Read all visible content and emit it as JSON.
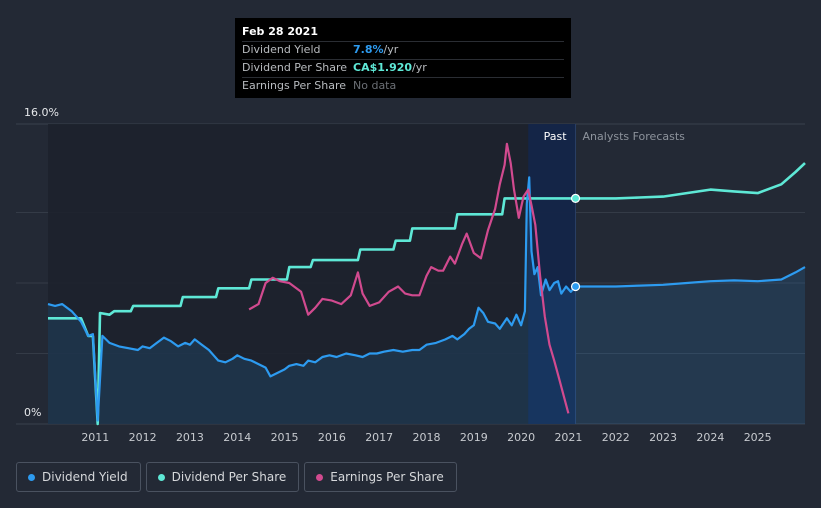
{
  "tooltip": {
    "date": "Feb 28 2021",
    "rows": [
      {
        "label": "Dividend Yield",
        "value": "7.8%",
        "unit": " /yr",
        "color": "#2d9bf0"
      },
      {
        "label": "Dividend Per Share",
        "value": "CA$1.920",
        "unit": " /yr",
        "color": "#5ee8d6"
      },
      {
        "label": "Earnings Per Share",
        "value": "No data",
        "unit": "",
        "color": "#6b6f75"
      }
    ]
  },
  "legend": [
    {
      "label": "Dividend Yield",
      "color": "#2d9bf0"
    },
    {
      "label": "Dividend Per Share",
      "color": "#5ee8d6"
    },
    {
      "label": "Earnings Per Share",
      "color": "#d14a8f"
    }
  ],
  "chart_data": {
    "type": "line",
    "title": "",
    "y_top_label": "16.0%",
    "y_bottom_label": "0%",
    "ylim": [
      0,
      16
    ],
    "xlim": [
      2010.0,
      2026.0
    ],
    "x_ticks": [
      "2011",
      "2012",
      "2013",
      "2014",
      "2015",
      "2016",
      "2017",
      "2018",
      "2019",
      "2020",
      "2021",
      "2022",
      "2023",
      "2024",
      "2025"
    ],
    "past_label": "Past",
    "forecast_label": "Analysts Forecasts",
    "forecast_start": 2021.15,
    "highlight_range": [
      2020.15,
      2021.15
    ],
    "series": [
      {
        "name": "Dividend Yield",
        "color": "#2d9bf0",
        "unit": "%",
        "points": [
          [
            2010.0,
            6.8
          ],
          [
            2010.15,
            6.7
          ],
          [
            2010.3,
            6.8
          ],
          [
            2010.5,
            6.4
          ],
          [
            2010.7,
            5.8
          ],
          [
            2010.85,
            5.0
          ],
          [
            2010.95,
            5.1
          ],
          [
            2011.05,
            0.2
          ],
          [
            2011.15,
            5.0
          ],
          [
            2011.3,
            4.6
          ],
          [
            2011.5,
            4.4
          ],
          [
            2011.7,
            4.3
          ],
          [
            2011.9,
            4.2
          ],
          [
            2012.0,
            4.4
          ],
          [
            2012.15,
            4.3
          ],
          [
            2012.3,
            4.6
          ],
          [
            2012.45,
            4.9
          ],
          [
            2012.6,
            4.7
          ],
          [
            2012.75,
            4.4
          ],
          [
            2012.9,
            4.6
          ],
          [
            2013.0,
            4.5
          ],
          [
            2013.1,
            4.8
          ],
          [
            2013.25,
            4.5
          ],
          [
            2013.4,
            4.2
          ],
          [
            2013.5,
            3.9
          ],
          [
            2013.6,
            3.6
          ],
          [
            2013.75,
            3.5
          ],
          [
            2013.9,
            3.7
          ],
          [
            2014.0,
            3.9
          ],
          [
            2014.15,
            3.7
          ],
          [
            2014.3,
            3.6
          ],
          [
            2014.45,
            3.4
          ],
          [
            2014.6,
            3.2
          ],
          [
            2014.7,
            2.7
          ],
          [
            2014.85,
            2.9
          ],
          [
            2015.0,
            3.1
          ],
          [
            2015.1,
            3.3
          ],
          [
            2015.25,
            3.4
          ],
          [
            2015.4,
            3.3
          ],
          [
            2015.5,
            3.6
          ],
          [
            2015.65,
            3.5
          ],
          [
            2015.8,
            3.8
          ],
          [
            2015.95,
            3.9
          ],
          [
            2016.1,
            3.8
          ],
          [
            2016.3,
            4.0
          ],
          [
            2016.5,
            3.9
          ],
          [
            2016.65,
            3.8
          ],
          [
            2016.8,
            4.0
          ],
          [
            2016.95,
            4.0
          ],
          [
            2017.1,
            4.1
          ],
          [
            2017.3,
            4.2
          ],
          [
            2017.5,
            4.1
          ],
          [
            2017.7,
            4.2
          ],
          [
            2017.85,
            4.2
          ],
          [
            2018.0,
            4.5
          ],
          [
            2018.2,
            4.6
          ],
          [
            2018.4,
            4.8
          ],
          [
            2018.55,
            5.0
          ],
          [
            2018.65,
            4.8
          ],
          [
            2018.8,
            5.1
          ],
          [
            2018.9,
            5.4
          ],
          [
            2019.0,
            5.6
          ],
          [
            2019.1,
            6.6
          ],
          [
            2019.2,
            6.3
          ],
          [
            2019.3,
            5.8
          ],
          [
            2019.45,
            5.7
          ],
          [
            2019.55,
            5.4
          ],
          [
            2019.7,
            6.0
          ],
          [
            2019.8,
            5.6
          ],
          [
            2019.9,
            6.2
          ],
          [
            2020.0,
            5.6
          ],
          [
            2020.08,
            6.4
          ],
          [
            2020.12,
            12.5
          ],
          [
            2020.17,
            14.0
          ],
          [
            2020.22,
            9.8
          ],
          [
            2020.28,
            8.5
          ],
          [
            2020.35,
            8.9
          ],
          [
            2020.42,
            7.3
          ],
          [
            2020.52,
            8.2
          ],
          [
            2020.6,
            7.6
          ],
          [
            2020.7,
            8.0
          ],
          [
            2020.78,
            8.1
          ],
          [
            2020.85,
            7.4
          ],
          [
            2020.95,
            7.8
          ],
          [
            2021.05,
            7.5
          ],
          [
            2021.15,
            7.8
          ],
          [
            2021.5,
            7.8
          ],
          [
            2022.0,
            7.8
          ],
          [
            2022.5,
            7.85
          ],
          [
            2023.0,
            7.9
          ],
          [
            2023.5,
            8.0
          ],
          [
            2024.0,
            8.1
          ],
          [
            2024.5,
            8.15
          ],
          [
            2025.0,
            8.1
          ],
          [
            2025.5,
            8.2
          ],
          [
            2025.8,
            8.6
          ],
          [
            2026.0,
            8.9
          ]
        ]
      },
      {
        "name": "Dividend Per Share",
        "color": "#5ee8d6",
        "unit": "CA$",
        "points": [
          [
            2010.0,
            6.0
          ],
          [
            2010.7,
            6.0
          ],
          [
            2010.85,
            5.0
          ],
          [
            2010.95,
            5.0
          ],
          [
            2011.05,
            0.0
          ],
          [
            2011.1,
            6.3
          ],
          [
            2011.3,
            6.2
          ],
          [
            2011.4,
            6.4
          ],
          [
            2011.75,
            6.4
          ],
          [
            2011.8,
            6.7
          ],
          [
            2012.8,
            6.7
          ],
          [
            2012.85,
            7.2
          ],
          [
            2013.55,
            7.2
          ],
          [
            2013.6,
            7.7
          ],
          [
            2014.25,
            7.7
          ],
          [
            2014.3,
            8.2
          ],
          [
            2015.05,
            8.2
          ],
          [
            2015.1,
            8.9
          ],
          [
            2015.55,
            8.9
          ],
          [
            2015.6,
            9.3
          ],
          [
            2016.55,
            9.3
          ],
          [
            2016.6,
            9.9
          ],
          [
            2017.3,
            9.9
          ],
          [
            2017.35,
            10.4
          ],
          [
            2017.65,
            10.4
          ],
          [
            2017.7,
            11.1
          ],
          [
            2018.6,
            11.1
          ],
          [
            2018.65,
            11.9
          ],
          [
            2019.6,
            11.9
          ],
          [
            2019.65,
            12.8
          ],
          [
            2020.2,
            12.8
          ],
          [
            2021.15,
            12.8
          ],
          [
            2022.0,
            12.8
          ],
          [
            2022.5,
            12.85
          ],
          [
            2023.0,
            12.9
          ],
          [
            2023.5,
            13.1
          ],
          [
            2024.0,
            13.3
          ],
          [
            2024.5,
            13.2
          ],
          [
            2025.0,
            13.1
          ],
          [
            2025.5,
            13.6
          ],
          [
            2025.8,
            14.3
          ],
          [
            2026.0,
            14.8
          ]
        ]
      },
      {
        "name": "Earnings Per Share",
        "color": "#d14a8f",
        "unit": "CA$",
        "points": [
          [
            2014.25,
            6.5
          ],
          [
            2014.45,
            6.8
          ],
          [
            2014.6,
            8.0
          ],
          [
            2014.75,
            8.3
          ],
          [
            2014.9,
            8.1
          ],
          [
            2015.1,
            8.0
          ],
          [
            2015.35,
            7.5
          ],
          [
            2015.5,
            6.2
          ],
          [
            2015.65,
            6.6
          ],
          [
            2015.8,
            7.1
          ],
          [
            2016.0,
            7.0
          ],
          [
            2016.2,
            6.8
          ],
          [
            2016.4,
            7.3
          ],
          [
            2016.55,
            8.6
          ],
          [
            2016.65,
            7.4
          ],
          [
            2016.8,
            6.7
          ],
          [
            2017.0,
            6.9
          ],
          [
            2017.2,
            7.5
          ],
          [
            2017.4,
            7.8
          ],
          [
            2017.55,
            7.4
          ],
          [
            2017.7,
            7.3
          ],
          [
            2017.85,
            7.3
          ],
          [
            2018.0,
            8.4
          ],
          [
            2018.1,
            8.9
          ],
          [
            2018.25,
            8.7
          ],
          [
            2018.35,
            8.7
          ],
          [
            2018.5,
            9.5
          ],
          [
            2018.6,
            9.1
          ],
          [
            2018.75,
            10.2
          ],
          [
            2018.85,
            10.8
          ],
          [
            2019.0,
            9.7
          ],
          [
            2019.15,
            9.4
          ],
          [
            2019.3,
            11.0
          ],
          [
            2019.45,
            12.2
          ],
          [
            2019.55,
            13.6
          ],
          [
            2019.65,
            14.7
          ],
          [
            2019.7,
            15.9
          ],
          [
            2019.78,
            14.8
          ],
          [
            2019.85,
            13.3
          ],
          [
            2019.95,
            11.7
          ],
          [
            2020.05,
            12.9
          ],
          [
            2020.15,
            13.3
          ],
          [
            2020.22,
            12.4
          ],
          [
            2020.3,
            11.3
          ],
          [
            2020.4,
            8.4
          ],
          [
            2020.5,
            6.1
          ],
          [
            2020.6,
            4.5
          ],
          [
            2020.7,
            3.6
          ],
          [
            2020.8,
            2.6
          ],
          [
            2020.9,
            1.6
          ],
          [
            2021.0,
            0.6
          ]
        ]
      }
    ]
  }
}
